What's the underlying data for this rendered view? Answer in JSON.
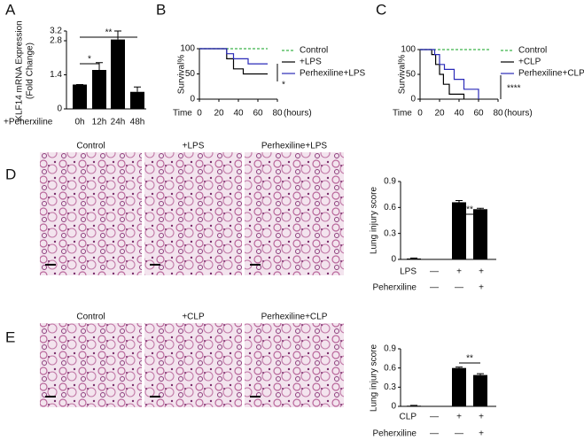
{
  "chart_data": [
    {
      "type": "bar",
      "panel": "A",
      "ylabel": [
        "KLF14 mRNA Expression",
        "(Fold Change)"
      ],
      "condition_label": "+Peherxiline",
      "categories": [
        "0h",
        "12h",
        "24h",
        "48h"
      ],
      "values": [
        1.0,
        1.6,
        2.85,
        0.7
      ],
      "errors": [
        0,
        0.3,
        0.35,
        0.2
      ],
      "color": "#000000",
      "ylim": [
        0,
        3.2
      ],
      "yticks": [
        0,
        1.4,
        2.8,
        3.2
      ],
      "annotations": [
        "*",
        "**"
      ]
    },
    {
      "type": "line",
      "step": true,
      "panel": "B",
      "ylabel": "Survival%",
      "xlabel": "Time",
      "xunit": "(hours)",
      "xlim": [
        0,
        80
      ],
      "xticks": [
        0,
        20,
        40,
        60,
        80
      ],
      "ylim": [
        0,
        100
      ],
      "yticks": [
        0,
        50,
        100
      ],
      "series": [
        {
          "name": "Control",
          "color": "#3cb44b",
          "dashed": true,
          "x": [
            0,
            70
          ],
          "values": [
            100,
            100
          ]
        },
        {
          "name": "+LPS",
          "color": "#000000",
          "x": [
            0,
            28,
            35,
            45,
            70
          ],
          "values": [
            100,
            80,
            60,
            50,
            50
          ]
        },
        {
          "name": "Perhexiline+LPS",
          "color": "#2a2ab8",
          "x": [
            0,
            28,
            35,
            50,
            70
          ],
          "values": [
            100,
            90,
            80,
            70,
            70
          ]
        }
      ],
      "annotations": [
        "*"
      ]
    },
    {
      "type": "line",
      "step": true,
      "panel": "C",
      "ylabel": "Survival%",
      "xlabel": "Time",
      "xunit": "(hours)",
      "xlim": [
        0,
        80
      ],
      "xticks": [
        0,
        20,
        40,
        60,
        80
      ],
      "ylim": [
        0,
        100
      ],
      "yticks": [
        0,
        50,
        100
      ],
      "series": [
        {
          "name": "Control",
          "color": "#3cb44b",
          "dashed": true,
          "x": [
            0,
            72
          ],
          "values": [
            100,
            100
          ]
        },
        {
          "name": "+CLP",
          "color": "#000000",
          "x": [
            0,
            12,
            16,
            20,
            24,
            30,
            45
          ],
          "values": [
            100,
            90,
            70,
            50,
            30,
            10,
            0
          ]
        },
        {
          "name": "Perhexiline+CLP",
          "color": "#2a2ab8",
          "x": [
            0,
            15,
            20,
            25,
            35,
            45,
            60
          ],
          "values": [
            100,
            90,
            70,
            60,
            40,
            20,
            0
          ]
        }
      ],
      "annotations": [
        "****"
      ]
    },
    {
      "type": "bar",
      "panel": "D",
      "images": [
        "Control",
        "+LPS",
        "Perhexiline+LPS"
      ],
      "ylabel": "Lung injury score",
      "values": [
        0.01,
        0.66,
        0.58
      ],
      "errors": [
        0.005,
        0.02,
        0.01
      ],
      "color": "#000000",
      "ylim": [
        0,
        0.9
      ],
      "yticks": [
        0,
        0.3,
        0.6,
        0.9
      ],
      "condition_rows": [
        {
          "label": "LPS",
          "marks": [
            "—",
            "+",
            "+"
          ]
        },
        {
          "label": "Peherxiline",
          "marks": [
            "—",
            "—",
            "+"
          ]
        }
      ],
      "annotations": [
        "**"
      ]
    },
    {
      "type": "bar",
      "panel": "E",
      "images": [
        "Control",
        "+CLP",
        "Perhexiline+CLP"
      ],
      "ylabel": "Lung injury score",
      "values": [
        0.01,
        0.6,
        0.49
      ],
      "errors": [
        0.005,
        0.015,
        0.02
      ],
      "color": "#000000",
      "ylim": [
        0,
        0.9
      ],
      "yticks": [
        0,
        0.3,
        0.6,
        0.9
      ],
      "condition_rows": [
        {
          "label": "CLP",
          "marks": [
            "—",
            "+",
            "+"
          ]
        },
        {
          "label": "Peherxiline",
          "marks": [
            "—",
            "—",
            "+"
          ]
        }
      ],
      "annotations": [
        "**"
      ]
    }
  ]
}
